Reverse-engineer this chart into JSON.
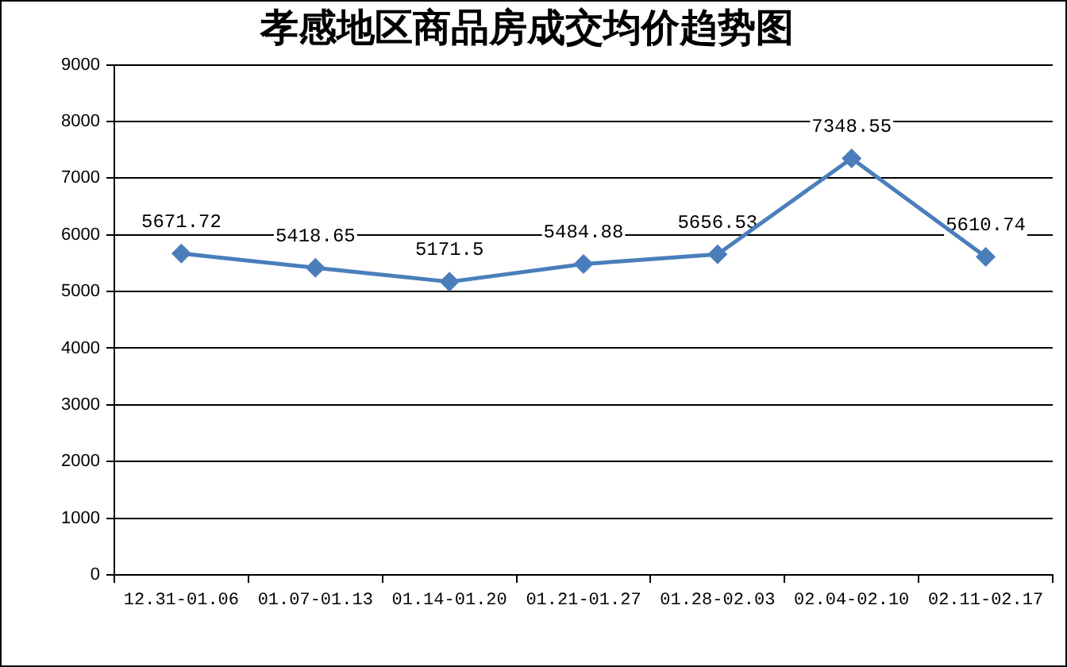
{
  "chart_data": {
    "type": "line",
    "title": "孝感地区商品房成交均价趋势图",
    "categories": [
      "12.31-01.06",
      "01.07-01.13",
      "01.14-01.20",
      "01.21-01.27",
      "01.28-02.03",
      "02.04-02.10",
      "02.11-02.17"
    ],
    "values": [
      5671.72,
      5418.65,
      5171.5,
      5484.88,
      5656.53,
      7348.55,
      5610.74
    ],
    "color": "#4a7ebb",
    "ylim": [
      0,
      9000
    ],
    "yticks": [
      0,
      1000,
      2000,
      3000,
      4000,
      5000,
      6000,
      7000,
      8000,
      9000
    ],
    "grid": "y",
    "data_labels": true,
    "marker": "diamond",
    "line_style": "solid"
  }
}
